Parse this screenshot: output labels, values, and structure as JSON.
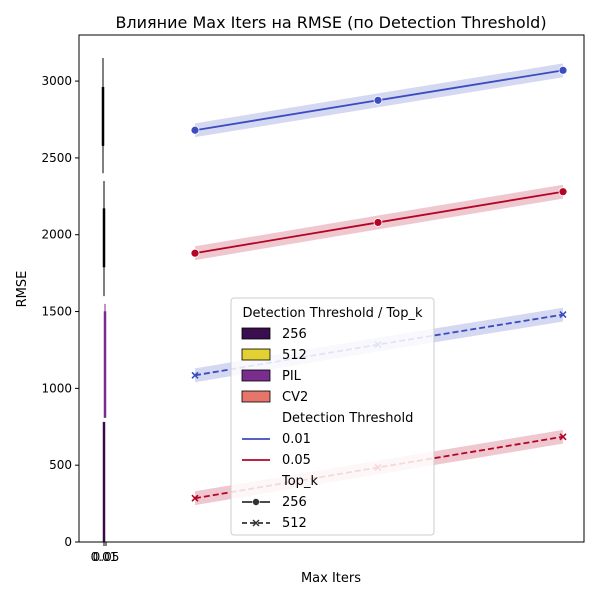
{
  "chart_data": {
    "type": "line",
    "title": "Влияние Max Iters на RMSE (по Detection Threshold)",
    "xlabel": "Max Iters",
    "ylabel": "RMSE",
    "x_ticks": [
      "0.01",
      "0.05"
    ],
    "y_ticks": [
      0,
      500,
      1000,
      1500,
      2000,
      2500,
      3000
    ],
    "ylim": [
      0,
      3300
    ],
    "x_points": [
      1,
      2,
      3
    ],
    "series": [
      {
        "threshold": "0.01",
        "top_k": "256",
        "color": "#3b4cc0",
        "dash": false,
        "marker": "circle",
        "values": [
          2680,
          2875,
          3070
        ],
        "band": 45
      },
      {
        "threshold": "0.05",
        "top_k": "256",
        "color": "#b40426",
        "dash": false,
        "marker": "circle",
        "values": [
          1880,
          2080,
          2280
        ],
        "band": 45
      },
      {
        "threshold": "0.01",
        "top_k": "512",
        "color": "#3b4cc0",
        "dash": true,
        "marker": "x",
        "values": [
          1085,
          1285,
          1480
        ],
        "band": 45
      },
      {
        "threshold": "0.05",
        "top_k": "512",
        "color": "#b40426",
        "dash": true,
        "marker": "x",
        "values": [
          285,
          485,
          685
        ],
        "band": 45
      }
    ],
    "box_whiskers": [
      {
        "color": "#000000",
        "whisker": [
          2400,
          3150
        ],
        "box": [
          2580,
          2960
        ]
      },
      {
        "color": "#000000",
        "whisker": [
          1600,
          2350
        ],
        "box": [
          1790,
          2170
        ]
      },
      {
        "color": "#7b2d8e",
        "whisker": [
          810,
          1550
        ],
        "box": [
          810,
          1500
        ]
      },
      {
        "color": "#3a0a4a",
        "whisker": [
          0,
          780
        ],
        "box": [
          0,
          780
        ]
      }
    ],
    "legend": {
      "title": "Detection Threshold / Top_k",
      "position": "lower-center",
      "patches": [
        {
          "label": "256",
          "color": "#3b0f4f"
        },
        {
          "label": "512",
          "color": "#e3d134"
        },
        {
          "label": "PIL",
          "color": "#7b2d8e"
        },
        {
          "label": "CV2",
          "color": "#e6766a"
        }
      ],
      "subtitle_threshold": "Detection Threshold",
      "threshold_items": [
        {
          "label": "0.01",
          "color": "#3b4cc0"
        },
        {
          "label": "0.05",
          "color": "#b40426"
        }
      ],
      "subtitle_topk": "Top_k",
      "topk_items": [
        {
          "label": "256",
          "dash": false,
          "marker": "circle"
        },
        {
          "label": "512",
          "dash": true,
          "marker": "x"
        }
      ]
    }
  }
}
